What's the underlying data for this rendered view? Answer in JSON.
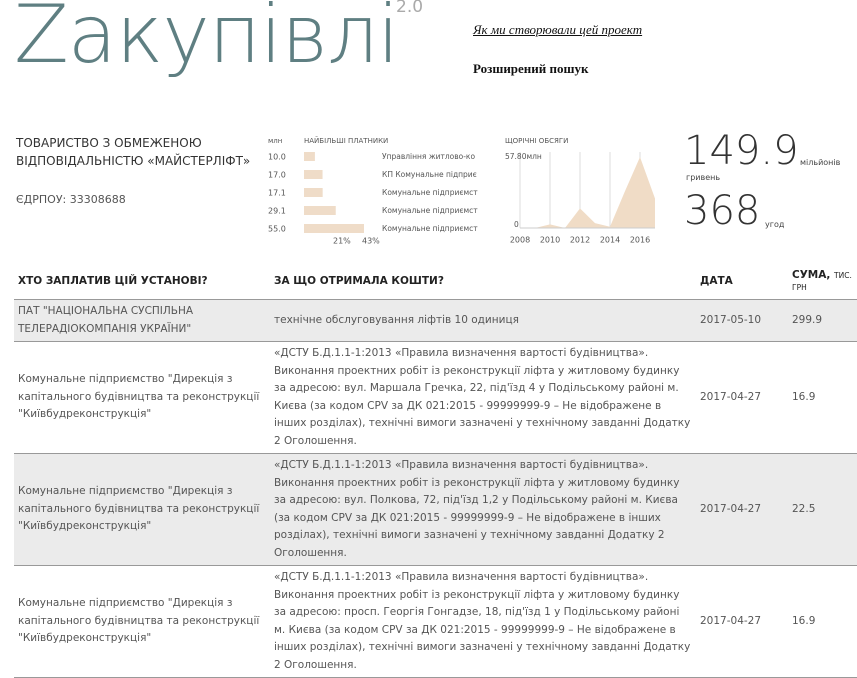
{
  "header": {
    "logo": "Zакупівлі",
    "version": "2.0",
    "links": [
      "Як ми створювали цей проект",
      "Розширений пошук"
    ]
  },
  "company": {
    "name": "ТОВАРИСТВО З ОБМЕЖЕНОЮ ВІДПОВІДАЛЬНІСТЮ «МАЙСТЕРЛІФТ»",
    "edrpou": "ЄДРПОУ: 33308688"
  },
  "payers_chart": {
    "type": "bar",
    "unit": "млн",
    "title": "НАЙБІЛЬШІ ПЛАТНИКИ",
    "categories": [
      "Управління житлово-ко",
      "КП Комунальне підприє",
      "Комунальне підприємст",
      "Комунальне підприємст",
      "Комунальне підприємст"
    ],
    "values": [
      10,
      17,
      17.1,
      29.1,
      55
    ],
    "value_labels": [
      "10.0",
      "17.0",
      "17.1",
      "29.1",
      "55.0"
    ],
    "color": "#efdcc8",
    "share_labels": [
      "21%",
      "43%"
    ]
  },
  "yearly_chart": {
    "type": "area",
    "title": "ЩОРІЧНІ ОБСЯГИ",
    "x": [
      2008,
      2009,
      2010,
      2011,
      2012,
      2013,
      2014,
      2015,
      2016,
      2017
    ],
    "values": [
      0,
      0,
      3,
      0,
      16,
      4,
      1,
      30,
      57.8,
      24
    ],
    "ylim": [
      0,
      57.8
    ],
    "yticks": [
      {
        "value": 57.8,
        "label": "57.80млн"
      },
      0
    ],
    "xlim": [
      2008,
      2017
    ],
    "xticks": [
      2008,
      2010,
      2012,
      2014,
      2016
    ],
    "color": "#f0dcc6"
  },
  "totals": {
    "amount": "149.9",
    "amount_unit": "мільйонів",
    "currency": "гривень",
    "deals": "368",
    "deals_unit": "угод"
  },
  "table": {
    "headers": [
      "ХТО ЗАПЛАТИВ ЦІЙ УСТАНОВІ?",
      "ЗА ЩО ОТРИМАЛА КОШТИ?",
      "ДАТА",
      "СУМА,"
    ],
    "amount_unit": "ТИС. ГРН",
    "rows": [
      [
        "ПАТ \"НАЦІОНАЛЬНА СУСПІЛЬНА ТЕЛЕРАДІОКОМПАНІЯ УКРАЇНИ\"",
        "технічне обслуговування ліфтів 10 одиниця",
        "2017-05-10",
        "299.9"
      ],
      [
        "Комунальне підприємство \"Дирекція з капітального будівництва та реконструкції \"Київбудреконструкція\"",
        "«ДСТУ Б.Д.1.1-1:2013 «Правила визначення вартості будівництва». Виконання проектних робіт із реконструкції ліфта у житловому будинку за адресою: вул. Маршала Гречка, 22, під'їзд 4 у Подільському районі м. Києва (за кодом CPV за ДК 021:2015 - 99999999-9 – Не відображене в інших розділах), технічні вимоги зазначені у технічному завданні Додатку 2 Оголошення.",
        "2017-04-27",
        "16.9"
      ],
      [
        "Комунальне підприємство \"Дирекція з капітального будівництва та реконструкції \"Київбудреконструкція\"",
        "«ДСТУ Б.Д.1.1-1:2013 «Правила визначення вартості будівництва». Виконання проектних робіт із реконструкції ліфта у житловому будинку за адресою: вул. Полкова, 72, під'їзд 1,2 у Подільському районі м. Києва (за кодом CPV за ДК 021:2015 - 99999999-9 – Не відображене в інших розділах), технічні вимоги зазначені у технічному завданні Додатку 2 Оголошення.",
        "2017-04-27",
        "22.5"
      ],
      [
        "Комунальне підприємство \"Дирекція з капітального будівництва та реконструкції \"Київбудреконструкція\"",
        "«ДСТУ Б.Д.1.1-1:2013 «Правила визначення вартості будівництва». Виконання проектних робіт із реконструкції ліфта у житловому будинку за адресою: просп. Георгія Гонгадзе, 18, під'їзд 1 у Подільському районі м. Києва (за кодом CPV за ДК 021:2015 - 99999999-9 – Не відображене в інших розділах), технічні вимоги зазначені у технічному завданні Додатку 2 Оголошення.",
        "2017-04-27",
        "16.9"
      ]
    ]
  }
}
